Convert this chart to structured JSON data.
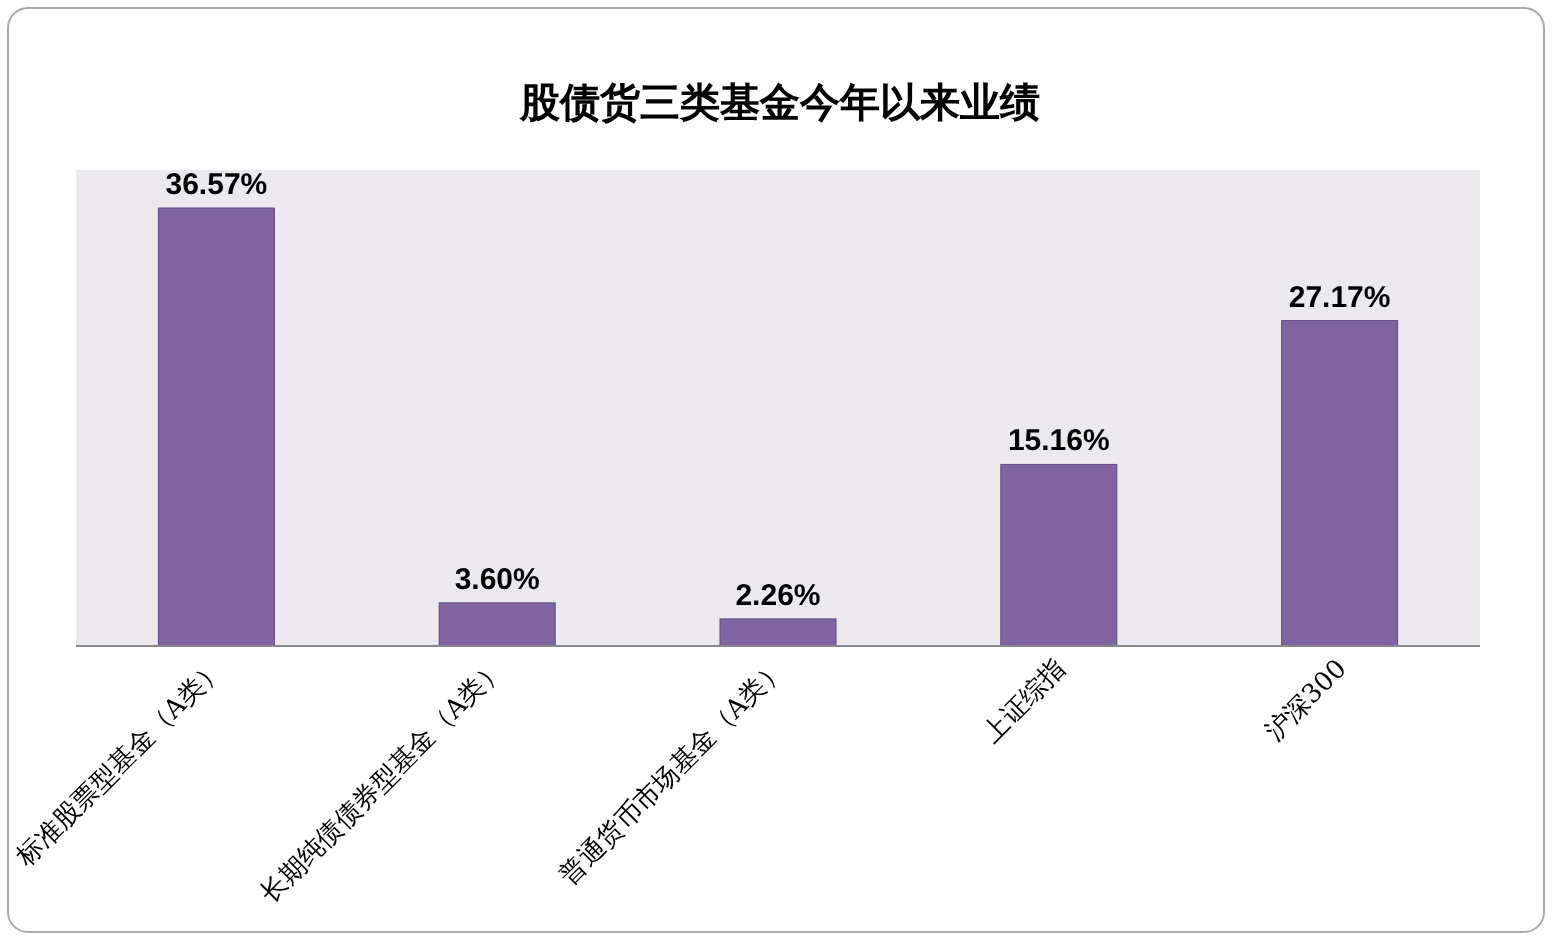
{
  "chart_data": {
    "type": "bar",
    "title": "股债货三类基金今年以来业绩",
    "categories": [
      "标准股票型基金（A类）",
      "长期纯债债券型基金（A类）",
      "普通货币市场基金（A类）",
      "上证综指",
      "沪深300"
    ],
    "values": [
      36.57,
      3.6,
      2.26,
      15.16,
      27.17
    ],
    "value_labels": [
      "36.57%",
      "3.60%",
      "2.26%",
      "15.16%",
      "27.17%"
    ],
    "color": "#8064a2"
  }
}
